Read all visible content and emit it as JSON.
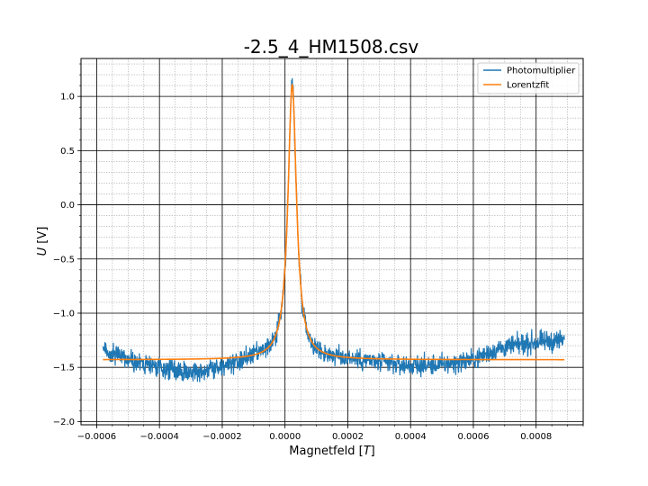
{
  "chart_data": {
    "type": "line",
    "title": "-2.5_4_HM1508.csv",
    "xlabel": "Magnetfeld [T]",
    "xlabel_parts": {
      "text": "Magnetfeld [",
      "italic": "T",
      "end": "]"
    },
    "ylabel": "U [V]",
    "ylabel_parts": {
      "italic": "U",
      "text": " [V]"
    },
    "xlim": [
      -0.00065,
      0.00095
    ],
    "ylim": [
      -2.03,
      1.35
    ],
    "x_ticks": [
      -0.0006,
      -0.0004,
      -0.0002,
      0.0,
      0.0002,
      0.0004,
      0.0006,
      0.0008
    ],
    "x_tick_labels": [
      "−0.0006",
      "−0.0004",
      "−0.0002",
      "0.0000",
      "0.0002",
      "0.0004",
      "0.0006",
      "0.0008"
    ],
    "y_ticks": [
      -2.0,
      -1.5,
      -1.0,
      -0.5,
      0.0,
      0.5,
      1.0
    ],
    "y_tick_labels": [
      "−2.0",
      "−1.5",
      "−1.0",
      "−0.5",
      "0.0",
      "0.5",
      "1.0"
    ],
    "grid": {
      "major": true,
      "minor": true
    },
    "legend_position": "top-right",
    "series": [
      {
        "name": "Photomultiplier",
        "color": "#1f77b4",
        "style": "noisy",
        "x_range": [
          -0.00058,
          0.00089
        ],
        "noise_amplitude": 0.09,
        "baseline_profile": {
          "x": [
            -0.00058,
            -0.0005,
            -0.0004,
            -0.0003,
            -0.0002,
            -0.0001,
            0.0002,
            0.0004,
            0.0005,
            0.0006,
            0.00068,
            0.0008,
            0.00089
          ],
          "offset": [
            0.1,
            0.0,
            -0.08,
            -0.12,
            -0.08,
            0.0,
            0.0,
            -0.06,
            -0.05,
            0.0,
            0.1,
            0.16,
            0.18
          ]
        }
      },
      {
        "name": "Lorentzfit",
        "color": "#ff7f0e",
        "style": "lorentzian",
        "x_range": [
          -0.00058,
          0.00089
        ],
        "offset": -1.43,
        "peak_height": 2.54,
        "center": 2.3e-05,
        "hwhm": 1.65e-05
      }
    ]
  }
}
